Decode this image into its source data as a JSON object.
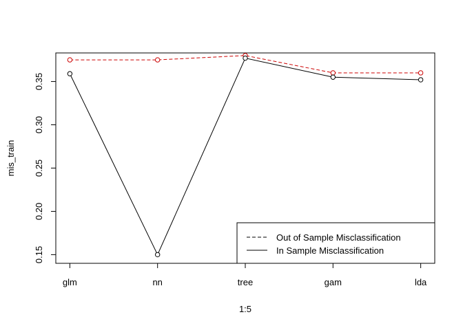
{
  "chart_data": {
    "type": "line",
    "title": "",
    "xlabel": "1:5",
    "ylabel": "mis_train",
    "x": [
      1,
      2,
      3,
      4,
      5
    ],
    "categories": [
      "glm",
      "nn",
      "tree",
      "gam",
      "lda"
    ],
    "xlim": [
      0.84,
      5.16
    ],
    "ylim": [
      0.14,
      0.383
    ],
    "yticks": [
      "0.15",
      "0.20",
      "0.25",
      "0.30",
      "0.35"
    ],
    "grid": false,
    "legend_position": "bottom-right",
    "series": [
      {
        "name": "Out of Sample Misclassification",
        "values": [
          0.375,
          0.375,
          0.38,
          0.36,
          0.36
        ],
        "line_style": "dashed",
        "point_color": "#cc0000",
        "line_color": "#cc0000"
      },
      {
        "name": "In Sample Misclassification",
        "values": [
          0.359,
          0.15,
          0.377,
          0.355,
          0.352
        ],
        "line_style": "solid",
        "point_color": "#000000",
        "line_color": "#000000"
      }
    ]
  }
}
